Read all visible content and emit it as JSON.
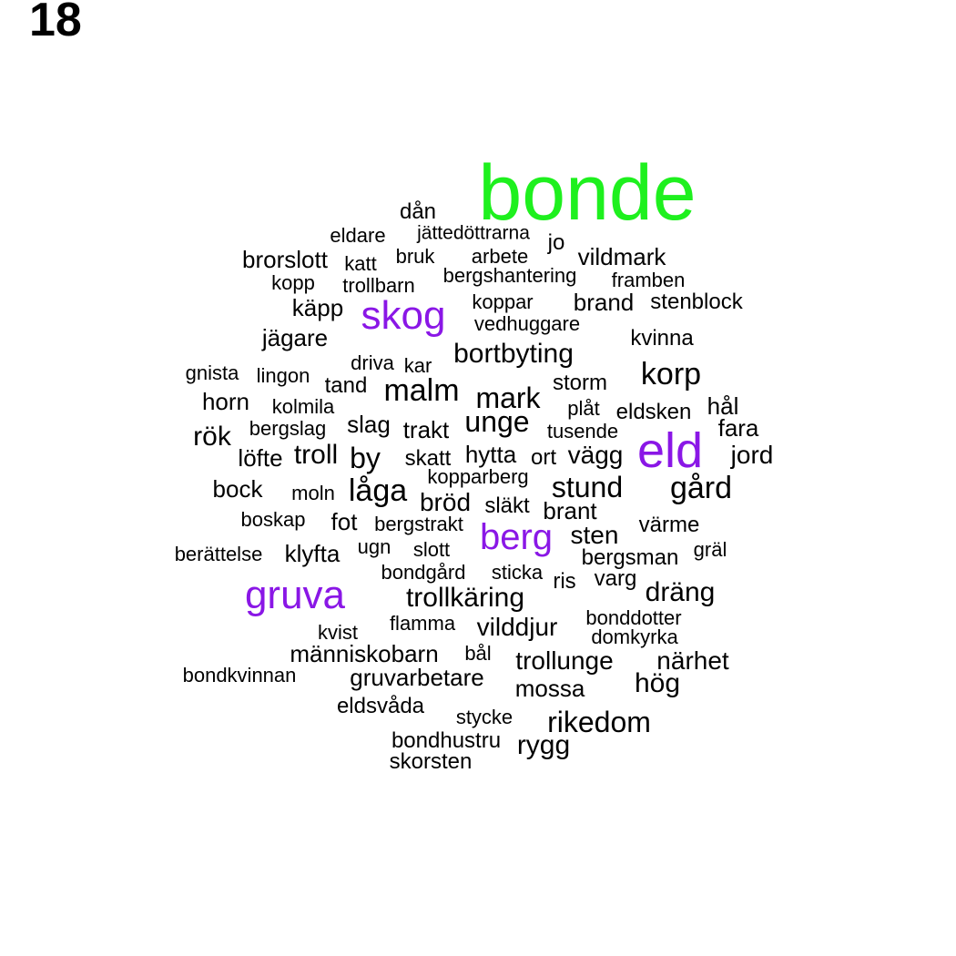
{
  "panel_number": "18",
  "colors": {
    "default": "#000000",
    "highlight": "#8a17e6",
    "top": "#1ef01e"
  },
  "words": [
    {
      "text": "bonde",
      "color": "top"
    },
    {
      "text": "eld",
      "color": "highlight"
    },
    {
      "text": "skog",
      "color": "highlight"
    },
    {
      "text": "gruva",
      "color": "highlight"
    },
    {
      "text": "berg",
      "color": "highlight"
    },
    {
      "text": "dån"
    },
    {
      "text": "jättedöttrarna"
    },
    {
      "text": "eldare"
    },
    {
      "text": "jo"
    },
    {
      "text": "brorslott"
    },
    {
      "text": "katt"
    },
    {
      "text": "bruk"
    },
    {
      "text": "arbete"
    },
    {
      "text": "vildmark"
    },
    {
      "text": "kopp"
    },
    {
      "text": "trollbarn"
    },
    {
      "text": "bergshantering"
    },
    {
      "text": "framben"
    },
    {
      "text": "käpp"
    },
    {
      "text": "koppar"
    },
    {
      "text": "brand"
    },
    {
      "text": "stenblock"
    },
    {
      "text": "vedhuggare"
    },
    {
      "text": "jägare"
    },
    {
      "text": "kvinna"
    },
    {
      "text": "bortbyting"
    },
    {
      "text": "driva"
    },
    {
      "text": "kar"
    },
    {
      "text": "gnista"
    },
    {
      "text": "lingon"
    },
    {
      "text": "korp"
    },
    {
      "text": "tand"
    },
    {
      "text": "malm"
    },
    {
      "text": "storm"
    },
    {
      "text": "mark"
    },
    {
      "text": "horn"
    },
    {
      "text": "kolmila"
    },
    {
      "text": "plåt"
    },
    {
      "text": "eldsken"
    },
    {
      "text": "hål"
    },
    {
      "text": "unge"
    },
    {
      "text": "slag"
    },
    {
      "text": "trakt"
    },
    {
      "text": "bergslag"
    },
    {
      "text": "tusende"
    },
    {
      "text": "fara"
    },
    {
      "text": "rök"
    },
    {
      "text": "löfte"
    },
    {
      "text": "troll"
    },
    {
      "text": "by"
    },
    {
      "text": "skatt"
    },
    {
      "text": "hytta"
    },
    {
      "text": "ort"
    },
    {
      "text": "vägg"
    },
    {
      "text": "jord"
    },
    {
      "text": "kopparberg"
    },
    {
      "text": "bock"
    },
    {
      "text": "moln"
    },
    {
      "text": "låga"
    },
    {
      "text": "stund"
    },
    {
      "text": "gård"
    },
    {
      "text": "bröd"
    },
    {
      "text": "släkt"
    },
    {
      "text": "brant"
    },
    {
      "text": "boskap"
    },
    {
      "text": "fot"
    },
    {
      "text": "bergstrakt"
    },
    {
      "text": "värme"
    },
    {
      "text": "sten"
    },
    {
      "text": "berättelse"
    },
    {
      "text": "klyfta"
    },
    {
      "text": "ugn"
    },
    {
      "text": "slott"
    },
    {
      "text": "bergsman"
    },
    {
      "text": "gräl"
    },
    {
      "text": "bondgård"
    },
    {
      "text": "sticka"
    },
    {
      "text": "ris"
    },
    {
      "text": "varg"
    },
    {
      "text": "dräng"
    },
    {
      "text": "trollkäring"
    },
    {
      "text": "bonddotter"
    },
    {
      "text": "flamma"
    },
    {
      "text": "vilddjur"
    },
    {
      "text": "kvist"
    },
    {
      "text": "domkyrka"
    },
    {
      "text": "människobarn"
    },
    {
      "text": "bål"
    },
    {
      "text": "trollunge"
    },
    {
      "text": "närhet"
    },
    {
      "text": "bondkvinnan"
    },
    {
      "text": "gruvarbetare"
    },
    {
      "text": "hög"
    },
    {
      "text": "mossa"
    },
    {
      "text": "eldsvåda"
    },
    {
      "text": "stycke"
    },
    {
      "text": "rikedom"
    },
    {
      "text": "bondhustru"
    },
    {
      "text": "rygg"
    },
    {
      "text": "skorsten"
    }
  ]
}
